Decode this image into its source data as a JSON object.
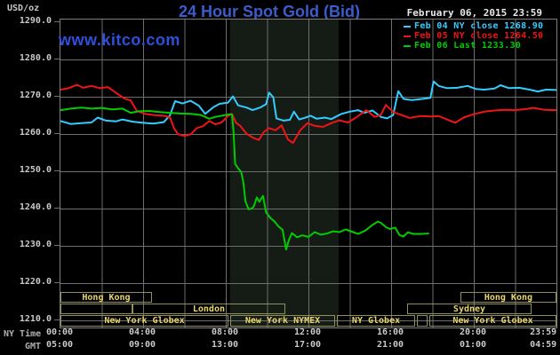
{
  "header": {
    "units_label": "USD/oz",
    "title": "24 Hour Spot Gold (Bid)",
    "datetime": "February 06, 2015 23:59",
    "watermark": "www.kitco.com"
  },
  "colors": {
    "background": "#000000",
    "title_blue": "#3b5ccc",
    "watermark_blue": "#2d50dd",
    "grid": "#6e6e6e",
    "plot_border": "#7e7e7e",
    "axis_text": "#c9c9c9",
    "row_label_text": "#b0b0b0",
    "date_text": "#e8e8e8",
    "session_border": "#90905a",
    "session_text": "#e8d56e",
    "nymex_band": "#151b15",
    "feb04": "#33ccff",
    "feb05": "#f01414",
    "feb06": "#00cc00"
  },
  "legend": [
    {
      "name": "feb04",
      "label": "Feb 04 NY close 1268.90"
    },
    {
      "name": "feb05",
      "label": "Feb 05 NY close 1264.50"
    },
    {
      "name": "feb06",
      "label": "Feb 06 Last 1233.30"
    }
  ],
  "y_axis": {
    "tick_labels": [
      "1290.0",
      "1280.0",
      "1270.0",
      "1260.0",
      "1250.0",
      "1240.0",
      "1230.0",
      "1220.0",
      "1210.0"
    ],
    "tick_values": [
      1290,
      1280,
      1270,
      1260,
      1250,
      1240,
      1230,
      1220,
      1210
    ]
  },
  "x_axis": {
    "ny_label": "NY Time",
    "gmt_label": "GMT",
    "tick_hours": [
      0,
      4,
      8,
      12,
      16,
      20,
      24
    ],
    "ny_ticks": [
      "00:00",
      "04:00",
      "08:00",
      "12:00",
      "16:00",
      "20:00",
      "23:59"
    ],
    "gmt_ticks": [
      "05:00",
      "09:00",
      "13:00",
      "17:00",
      "21:00",
      "01:00",
      "04:59"
    ]
  },
  "sessions": {
    "rows": [
      [
        {
          "label": "Hong Kong",
          "start": 0,
          "end": 4.43
        },
        {
          "label": "Hong Kong",
          "start": 19.35,
          "end": 24
        }
      ],
      [
        {
          "label": "",
          "start": 0,
          "end": 3.48
        },
        {
          "label": "London",
          "start": 3.48,
          "end": 10.88
        },
        {
          "label": "Sydney",
          "start": 16.77,
          "end": 22.8
        }
      ],
      [
        {
          "label": "New York Globex",
          "start": 0,
          "end": 8.13
        },
        {
          "label": "New York NYMEX",
          "start": 8.22,
          "end": 13.29
        },
        {
          "label": "NY Globex",
          "start": 13.38,
          "end": 17.16
        },
        {
          "label": "",
          "start": 17.25,
          "end": 17.76
        },
        {
          "label": "New York Globex",
          "start": 17.85,
          "end": 24
        }
      ]
    ]
  },
  "chart_data": {
    "type": "line",
    "title": "24 Hour Spot Gold (Bid)",
    "xlabel": "NY Time (hours 00:00-23:59)",
    "ylabel": "USD/oz",
    "ylim": [
      1210,
      1290
    ],
    "xlim_hours": [
      0,
      24
    ],
    "grid": "on, gray, vertical every 2h, horizontal every 10 USD",
    "legend_position": "top-right inside plot",
    "nymex_band_hours": [
      8.2,
      13.46
    ],
    "series": [
      {
        "name": "Feb 04 NY close",
        "close_value": 1268.9,
        "color_key": "feb04",
        "points": [
          [
            0,
            1263.5
          ],
          [
            0.5,
            1262.7
          ],
          [
            1.0,
            1262.9
          ],
          [
            1.5,
            1263.1
          ],
          [
            1.8,
            1264.4
          ],
          [
            2.2,
            1263.6
          ],
          [
            2.7,
            1263.4
          ],
          [
            3.0,
            1263.9
          ],
          [
            3.5,
            1263.3
          ],
          [
            4.0,
            1263.0
          ],
          [
            4.5,
            1262.8
          ],
          [
            5.0,
            1263.2
          ],
          [
            5.3,
            1265.0
          ],
          [
            5.55,
            1268.8
          ],
          [
            5.9,
            1268.2
          ],
          [
            6.3,
            1268.9
          ],
          [
            6.7,
            1267.6
          ],
          [
            7.0,
            1265.4
          ],
          [
            7.4,
            1267.2
          ],
          [
            7.7,
            1268.1
          ],
          [
            8.1,
            1268.4
          ],
          [
            8.35,
            1270.1
          ],
          [
            8.6,
            1267.7
          ],
          [
            9.0,
            1267.1
          ],
          [
            9.3,
            1266.4
          ],
          [
            9.7,
            1267.2
          ],
          [
            9.95,
            1268.0
          ],
          [
            10.1,
            1271.1
          ],
          [
            10.3,
            1269.8
          ],
          [
            10.45,
            1264.2
          ],
          [
            10.8,
            1263.6
          ],
          [
            11.1,
            1263.8
          ],
          [
            11.3,
            1266.0
          ],
          [
            11.55,
            1263.9
          ],
          [
            11.8,
            1264.3
          ],
          [
            12.1,
            1264.9
          ],
          [
            12.4,
            1264.1
          ],
          [
            12.8,
            1264.4
          ],
          [
            13.1,
            1264.0
          ],
          [
            13.6,
            1265.4
          ],
          [
            14.0,
            1266.0
          ],
          [
            14.4,
            1266.4
          ],
          [
            14.7,
            1265.7
          ],
          [
            15.1,
            1266.3
          ],
          [
            15.5,
            1264.6
          ],
          [
            15.8,
            1264.2
          ],
          [
            16.1,
            1265.1
          ],
          [
            16.35,
            1271.5
          ],
          [
            16.6,
            1269.4
          ],
          [
            17.0,
            1269.1
          ],
          [
            17.5,
            1269.4
          ],
          [
            17.9,
            1269.7
          ],
          [
            18.05,
            1274.1
          ],
          [
            18.3,
            1272.9
          ],
          [
            18.7,
            1272.3
          ],
          [
            19.2,
            1272.4
          ],
          [
            19.7,
            1272.9
          ],
          [
            20.1,
            1272.1
          ],
          [
            20.5,
            1271.9
          ],
          [
            21.0,
            1272.2
          ],
          [
            21.3,
            1273.1
          ],
          [
            21.7,
            1272.3
          ],
          [
            22.2,
            1272.4
          ],
          [
            22.7,
            1271.9
          ],
          [
            23.1,
            1271.4
          ],
          [
            23.5,
            1271.9
          ],
          [
            24,
            1271.8
          ]
        ]
      },
      {
        "name": "Feb 05 NY close",
        "close_value": 1264.5,
        "color_key": "feb05",
        "points": [
          [
            0,
            1271.9
          ],
          [
            0.4,
            1272.3
          ],
          [
            0.8,
            1273.2
          ],
          [
            1.1,
            1272.4
          ],
          [
            1.5,
            1272.9
          ],
          [
            1.9,
            1272.3
          ],
          [
            2.3,
            1272.6
          ],
          [
            2.7,
            1271.0
          ],
          [
            3.1,
            1269.5
          ],
          [
            3.4,
            1269.0
          ],
          [
            3.7,
            1266.2
          ],
          [
            4.1,
            1265.4
          ],
          [
            4.5,
            1265.1
          ],
          [
            5.0,
            1264.9
          ],
          [
            5.3,
            1264.5
          ],
          [
            5.5,
            1261.5
          ],
          [
            5.7,
            1259.9
          ],
          [
            6.0,
            1259.5
          ],
          [
            6.3,
            1259.9
          ],
          [
            6.6,
            1261.6
          ],
          [
            6.9,
            1262.1
          ],
          [
            7.2,
            1263.5
          ],
          [
            7.5,
            1262.6
          ],
          [
            7.8,
            1263.1
          ],
          [
            8.1,
            1264.8
          ],
          [
            8.3,
            1265.4
          ],
          [
            8.5,
            1263.0
          ],
          [
            8.7,
            1262.2
          ],
          [
            9.0,
            1260.1
          ],
          [
            9.35,
            1258.9
          ],
          [
            9.6,
            1258.4
          ],
          [
            9.85,
            1260.6
          ],
          [
            10.1,
            1261.6
          ],
          [
            10.4,
            1261.0
          ],
          [
            10.7,
            1262.3
          ],
          [
            11.0,
            1258.6
          ],
          [
            11.25,
            1257.6
          ],
          [
            11.6,
            1261.0
          ],
          [
            11.95,
            1262.9
          ],
          [
            12.3,
            1262.2
          ],
          [
            12.7,
            1261.9
          ],
          [
            13.1,
            1262.9
          ],
          [
            13.5,
            1263.7
          ],
          [
            13.9,
            1263.1
          ],
          [
            14.3,
            1264.4
          ],
          [
            14.8,
            1266.4
          ],
          [
            15.2,
            1264.6
          ],
          [
            15.5,
            1265.1
          ],
          [
            15.75,
            1267.8
          ],
          [
            16.1,
            1265.9
          ],
          [
            16.5,
            1265.1
          ],
          [
            16.9,
            1264.3
          ],
          [
            17.4,
            1264.8
          ],
          [
            17.9,
            1264.7
          ],
          [
            18.3,
            1264.8
          ],
          [
            18.7,
            1263.9
          ],
          [
            19.1,
            1263.0
          ],
          [
            19.5,
            1264.4
          ],
          [
            20.0,
            1265.3
          ],
          [
            20.5,
            1266.0
          ],
          [
            21.0,
            1266.3
          ],
          [
            21.5,
            1266.5
          ],
          [
            22.0,
            1266.4
          ],
          [
            22.5,
            1266.7
          ],
          [
            22.9,
            1267.0
          ],
          [
            23.4,
            1266.5
          ],
          [
            24,
            1266.4
          ]
        ]
      },
      {
        "name": "Feb 06 Last",
        "last_value": 1233.3,
        "color_key": "feb06",
        "points": [
          [
            0,
            1266.4
          ],
          [
            0.5,
            1266.8
          ],
          [
            1.0,
            1267.1
          ],
          [
            1.5,
            1266.8
          ],
          [
            2.0,
            1267.0
          ],
          [
            2.5,
            1266.6
          ],
          [
            3.0,
            1266.8
          ],
          [
            3.4,
            1265.7
          ],
          [
            3.8,
            1266.1
          ],
          [
            4.3,
            1266.2
          ],
          [
            4.8,
            1265.9
          ],
          [
            5.3,
            1265.7
          ],
          [
            5.8,
            1265.5
          ],
          [
            6.3,
            1265.4
          ],
          [
            6.8,
            1265.1
          ],
          [
            7.2,
            1264.1
          ],
          [
            7.5,
            1264.6
          ],
          [
            7.9,
            1265.0
          ],
          [
            8.2,
            1265.3
          ],
          [
            8.3,
            1265.2
          ],
          [
            8.38,
            1260.5
          ],
          [
            8.45,
            1252.0
          ],
          [
            8.6,
            1250.8
          ],
          [
            8.75,
            1249.8
          ],
          [
            8.85,
            1247.0
          ],
          [
            8.95,
            1242.0
          ],
          [
            9.1,
            1239.8
          ],
          [
            9.25,
            1240.0
          ],
          [
            9.35,
            1240.5
          ],
          [
            9.5,
            1243.0
          ],
          [
            9.62,
            1241.8
          ],
          [
            9.8,
            1243.4
          ],
          [
            9.95,
            1239.0
          ],
          [
            10.15,
            1237.5
          ],
          [
            10.35,
            1236.6
          ],
          [
            10.55,
            1235.2
          ],
          [
            10.75,
            1234.3
          ],
          [
            10.92,
            1229.0
          ],
          [
            11.05,
            1231.5
          ],
          [
            11.2,
            1233.4
          ],
          [
            11.45,
            1232.3
          ],
          [
            11.7,
            1232.8
          ],
          [
            12.0,
            1232.4
          ],
          [
            12.3,
            1233.7
          ],
          [
            12.6,
            1233.0
          ],
          [
            12.9,
            1233.3
          ],
          [
            13.2,
            1233.9
          ],
          [
            13.5,
            1233.7
          ],
          [
            13.8,
            1234.4
          ],
          [
            14.1,
            1233.8
          ],
          [
            14.4,
            1233.2
          ],
          [
            14.75,
            1234.1
          ],
          [
            15.05,
            1235.4
          ],
          [
            15.35,
            1236.5
          ],
          [
            15.5,
            1236.2
          ],
          [
            15.75,
            1235.0
          ],
          [
            15.95,
            1234.5
          ],
          [
            16.2,
            1234.9
          ],
          [
            16.4,
            1232.9
          ],
          [
            16.6,
            1232.5
          ],
          [
            16.8,
            1233.6
          ],
          [
            17.1,
            1233.2
          ],
          [
            17.4,
            1233.2
          ],
          [
            17.8,
            1233.3
          ]
        ]
      }
    ]
  }
}
